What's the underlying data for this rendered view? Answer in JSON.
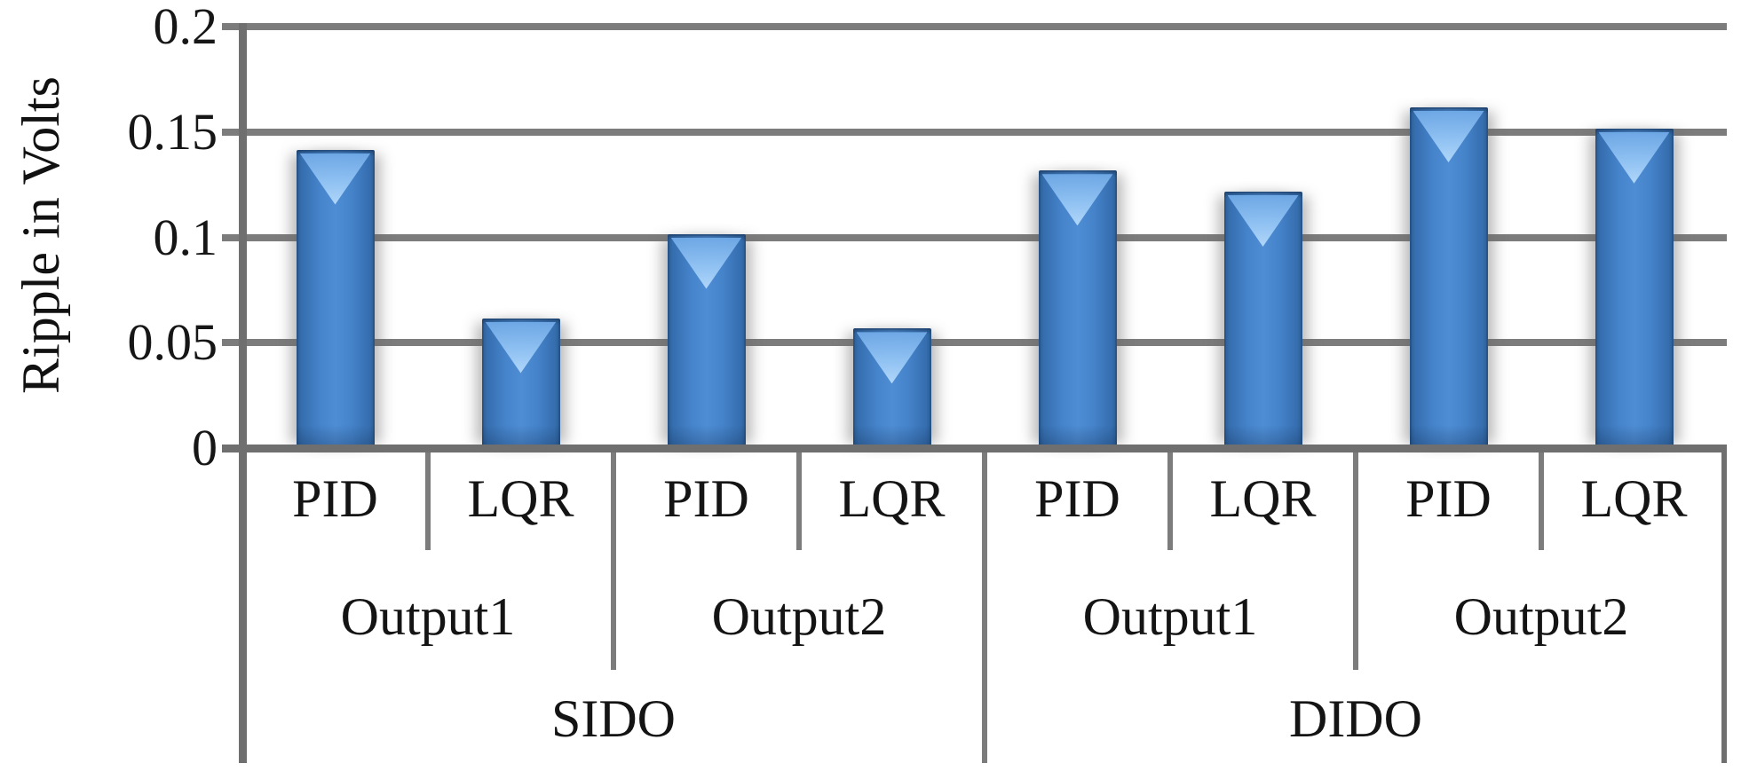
{
  "chart_data": {
    "type": "bar",
    "title": "",
    "ylabel": "Ripple in Volts",
    "xlabel": "",
    "ylim": [
      0,
      0.2
    ],
    "ytick_interval": 0.05,
    "ytick_labels_top_to_bottom": [
      "0.2",
      "0.15",
      "0.1",
      "0.05",
      "0"
    ],
    "grid": true,
    "legend": false,
    "categories_level1_controller": [
      "PID",
      "LQR",
      "PID",
      "LQR",
      "PID",
      "LQR",
      "PID",
      "LQR"
    ],
    "categories_level2_output": [
      "Output1",
      "Output2",
      "Output1",
      "Output2"
    ],
    "categories_level3_topology": [
      "SIDO",
      "DIDO"
    ],
    "series": [
      {
        "name": "Ripple",
        "points": [
          {
            "topology": "SIDO",
            "output": "Output1",
            "controller": "PID",
            "value": 0.14
          },
          {
            "topology": "SIDO",
            "output": "Output1",
            "controller": "LQR",
            "value": 0.06
          },
          {
            "topology": "SIDO",
            "output": "Output2",
            "controller": "PID",
            "value": 0.1
          },
          {
            "topology": "SIDO",
            "output": "Output2",
            "controller": "LQR",
            "value": 0.055
          },
          {
            "topology": "DIDO",
            "output": "Output1",
            "controller": "PID",
            "value": 0.13
          },
          {
            "topology": "DIDO",
            "output": "Output1",
            "controller": "LQR",
            "value": 0.12
          },
          {
            "topology": "DIDO",
            "output": "Output2",
            "controller": "PID",
            "value": 0.16
          },
          {
            "topology": "DIDO",
            "output": "Output2",
            "controller": "LQR",
            "value": 0.15
          }
        ]
      }
    ],
    "colors": {
      "bar_fill": "#3E7CC4",
      "bar_edge": "#2A5C94",
      "bar_gloss_highlight": "#B6DAFB",
      "gridline": "#7C7C7C",
      "axis_line": "#6F6F6F",
      "text": "#1A1A1A",
      "background": "#FFFFFF"
    }
  }
}
